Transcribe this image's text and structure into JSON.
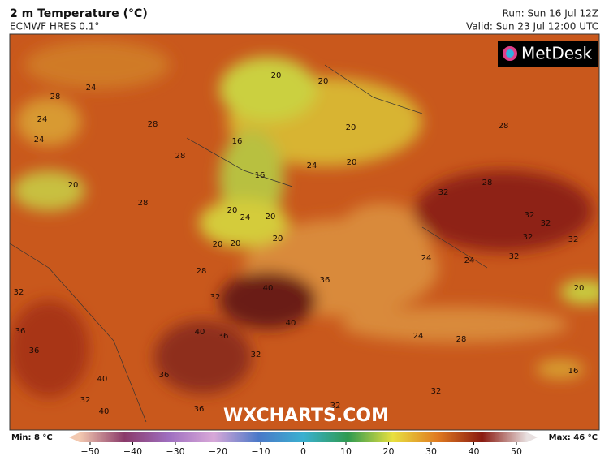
{
  "header": {
    "title": "2 m Temperature (°C)",
    "model": "ECMWF HRES 0.1°",
    "run": "Run: Sun 16 Jul 12Z",
    "valid": "Valid: Sun 23 Jul 12:00 UTC"
  },
  "logo": "MetDesk",
  "watermark": "WXCHARTS.COM",
  "contour_labels": [
    24,
    28,
    24,
    24,
    28,
    20,
    20,
    20,
    16,
    28,
    24,
    20,
    16,
    20,
    28,
    20,
    24,
    20,
    20,
    20,
    20,
    28,
    40,
    36,
    32,
    24,
    24,
    28,
    28,
    32,
    32,
    32,
    32,
    32,
    32,
    20,
    32,
    36,
    36,
    40,
    36,
    40,
    36,
    40,
    32,
    24,
    28,
    16,
    32,
    32,
    40,
    36,
    32
  ],
  "colorbar": {
    "min": "Min: 8 °C",
    "max": "Max: 46 °C",
    "ticks": [
      {
        "value": -50,
        "label": "−50"
      },
      {
        "value": -40,
        "label": "−40"
      },
      {
        "value": -30,
        "label": "−30"
      },
      {
        "value": -20,
        "label": "−20"
      },
      {
        "value": -10,
        "label": "−10"
      },
      0,
      10,
      20,
      30,
      40,
      50
    ],
    "lim": [
      -50,
      50
    ]
  }
}
